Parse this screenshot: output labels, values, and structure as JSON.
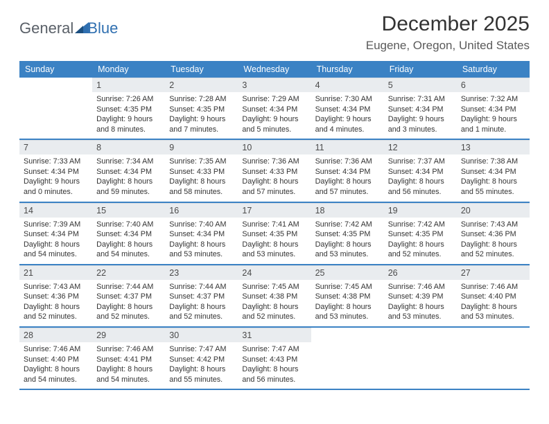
{
  "logo": {
    "text1": "General",
    "text2": "Blue",
    "accent_color": "#2f6fb0"
  },
  "title": "December 2025",
  "location": "Eugene, Oregon, United States",
  "colors": {
    "header_bg": "#3b82c4",
    "header_fg": "#ffffff",
    "daynum_bg": "#e9ecef",
    "text": "#333333",
    "rule": "#3b82c4"
  },
  "weekdays": [
    "Sunday",
    "Monday",
    "Tuesday",
    "Wednesday",
    "Thursday",
    "Friday",
    "Saturday"
  ],
  "weeks": [
    [
      null,
      {
        "n": "1",
        "sr": "7:26 AM",
        "ss": "4:35 PM",
        "dl": "9 hours and 8 minutes."
      },
      {
        "n": "2",
        "sr": "7:28 AM",
        "ss": "4:35 PM",
        "dl": "9 hours and 7 minutes."
      },
      {
        "n": "3",
        "sr": "7:29 AM",
        "ss": "4:34 PM",
        "dl": "9 hours and 5 minutes."
      },
      {
        "n": "4",
        "sr": "7:30 AM",
        "ss": "4:34 PM",
        "dl": "9 hours and 4 minutes."
      },
      {
        "n": "5",
        "sr": "7:31 AM",
        "ss": "4:34 PM",
        "dl": "9 hours and 3 minutes."
      },
      {
        "n": "6",
        "sr": "7:32 AM",
        "ss": "4:34 PM",
        "dl": "9 hours and 1 minute."
      }
    ],
    [
      {
        "n": "7",
        "sr": "7:33 AM",
        "ss": "4:34 PM",
        "dl": "9 hours and 0 minutes."
      },
      {
        "n": "8",
        "sr": "7:34 AM",
        "ss": "4:34 PM",
        "dl": "8 hours and 59 minutes."
      },
      {
        "n": "9",
        "sr": "7:35 AM",
        "ss": "4:33 PM",
        "dl": "8 hours and 58 minutes."
      },
      {
        "n": "10",
        "sr": "7:36 AM",
        "ss": "4:33 PM",
        "dl": "8 hours and 57 minutes."
      },
      {
        "n": "11",
        "sr": "7:36 AM",
        "ss": "4:34 PM",
        "dl": "8 hours and 57 minutes."
      },
      {
        "n": "12",
        "sr": "7:37 AM",
        "ss": "4:34 PM",
        "dl": "8 hours and 56 minutes."
      },
      {
        "n": "13",
        "sr": "7:38 AM",
        "ss": "4:34 PM",
        "dl": "8 hours and 55 minutes."
      }
    ],
    [
      {
        "n": "14",
        "sr": "7:39 AM",
        "ss": "4:34 PM",
        "dl": "8 hours and 54 minutes."
      },
      {
        "n": "15",
        "sr": "7:40 AM",
        "ss": "4:34 PM",
        "dl": "8 hours and 54 minutes."
      },
      {
        "n": "16",
        "sr": "7:40 AM",
        "ss": "4:34 PM",
        "dl": "8 hours and 53 minutes."
      },
      {
        "n": "17",
        "sr": "7:41 AM",
        "ss": "4:35 PM",
        "dl": "8 hours and 53 minutes."
      },
      {
        "n": "18",
        "sr": "7:42 AM",
        "ss": "4:35 PM",
        "dl": "8 hours and 53 minutes."
      },
      {
        "n": "19",
        "sr": "7:42 AM",
        "ss": "4:35 PM",
        "dl": "8 hours and 52 minutes."
      },
      {
        "n": "20",
        "sr": "7:43 AM",
        "ss": "4:36 PM",
        "dl": "8 hours and 52 minutes."
      }
    ],
    [
      {
        "n": "21",
        "sr": "7:43 AM",
        "ss": "4:36 PM",
        "dl": "8 hours and 52 minutes."
      },
      {
        "n": "22",
        "sr": "7:44 AM",
        "ss": "4:37 PM",
        "dl": "8 hours and 52 minutes."
      },
      {
        "n": "23",
        "sr": "7:44 AM",
        "ss": "4:37 PM",
        "dl": "8 hours and 52 minutes."
      },
      {
        "n": "24",
        "sr": "7:45 AM",
        "ss": "4:38 PM",
        "dl": "8 hours and 52 minutes."
      },
      {
        "n": "25",
        "sr": "7:45 AM",
        "ss": "4:38 PM",
        "dl": "8 hours and 53 minutes."
      },
      {
        "n": "26",
        "sr": "7:46 AM",
        "ss": "4:39 PM",
        "dl": "8 hours and 53 minutes."
      },
      {
        "n": "27",
        "sr": "7:46 AM",
        "ss": "4:40 PM",
        "dl": "8 hours and 53 minutes."
      }
    ],
    [
      {
        "n": "28",
        "sr": "7:46 AM",
        "ss": "4:40 PM",
        "dl": "8 hours and 54 minutes."
      },
      {
        "n": "29",
        "sr": "7:46 AM",
        "ss": "4:41 PM",
        "dl": "8 hours and 54 minutes."
      },
      {
        "n": "30",
        "sr": "7:47 AM",
        "ss": "4:42 PM",
        "dl": "8 hours and 55 minutes."
      },
      {
        "n": "31",
        "sr": "7:47 AM",
        "ss": "4:43 PM",
        "dl": "8 hours and 56 minutes."
      },
      null,
      null,
      null
    ]
  ],
  "labels": {
    "sunrise": "Sunrise:",
    "sunset": "Sunset:",
    "daylight": "Daylight:"
  }
}
